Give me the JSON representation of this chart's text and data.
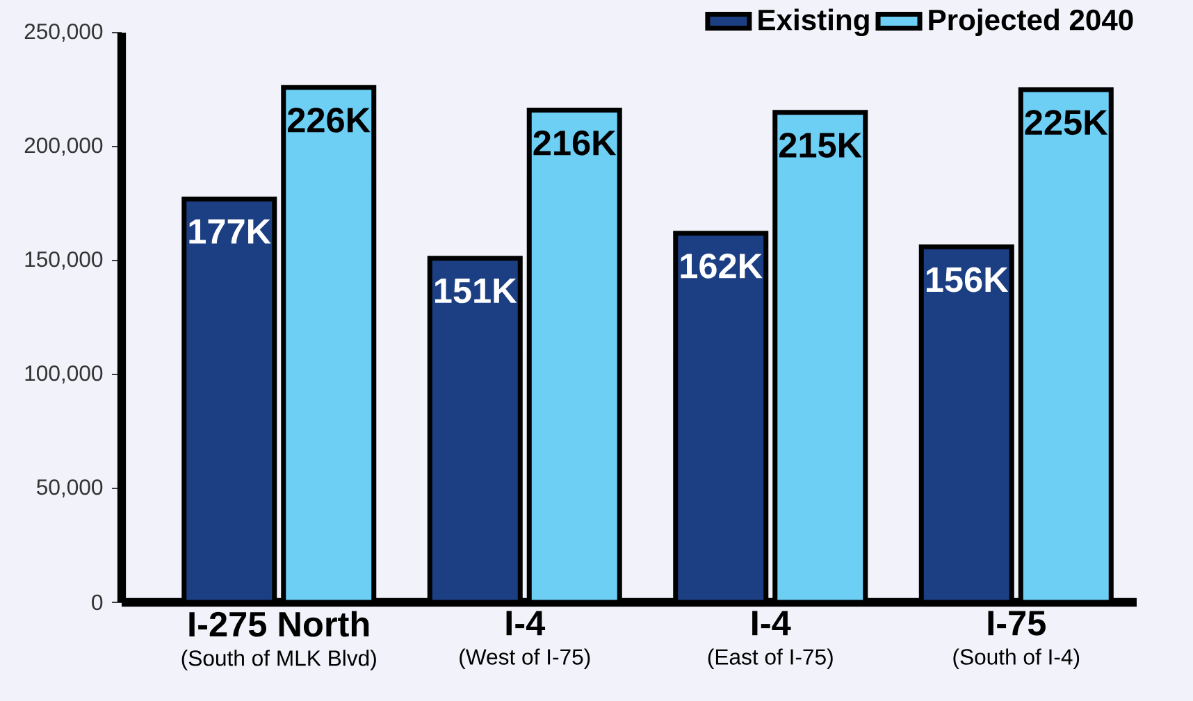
{
  "chart_data": {
    "type": "bar",
    "categories": [
      "I-275 North",
      "I-4",
      "I-4",
      "I-75"
    ],
    "annotations": [
      "(South of MLK Blvd)",
      "(West of I-75)",
      "(East of I-75)",
      "(South of I-4)"
    ],
    "series": [
      {
        "name": "Existing",
        "color": "#1c3f83",
        "values": [
          177000,
          151000,
          162000,
          156000
        ],
        "value_labels": [
          "177K",
          "151K",
          "162K",
          "156K"
        ]
      },
      {
        "name": "Projected 2040",
        "color": "#6ecff5",
        "values": [
          226000,
          216000,
          215000,
          225000
        ],
        "value_labels": [
          "226K",
          "216K",
          "215K",
          "225K"
        ]
      }
    ],
    "ylim": [
      0,
      250000
    ],
    "yticks": [
      {
        "value": 0,
        "label": "0"
      },
      {
        "value": 50000,
        "label": "50,000"
      },
      {
        "value": 100000,
        "label": "100,000"
      },
      {
        "value": 150000,
        "label": "150,000"
      },
      {
        "value": 200000,
        "label": "200,000"
      },
      {
        "value": 250000,
        "label": "250,000"
      }
    ],
    "grid": false,
    "legend": "top right"
  }
}
